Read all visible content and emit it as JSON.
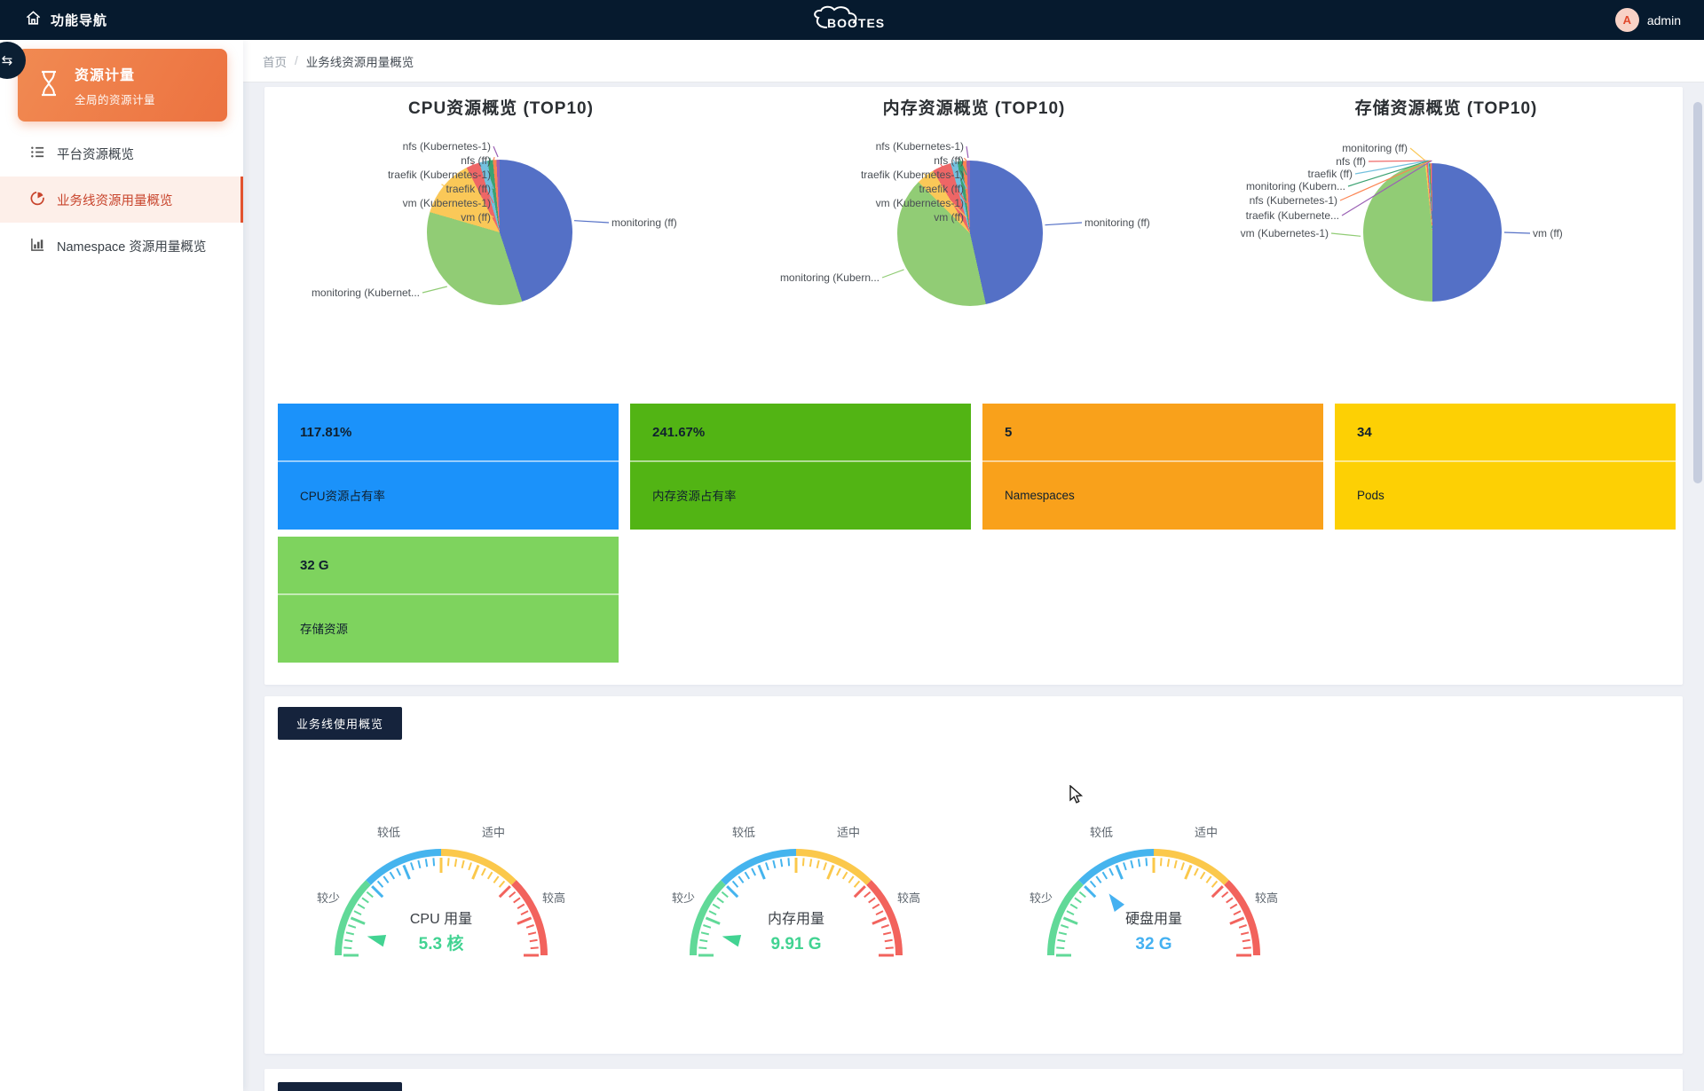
{
  "navbar": {
    "title": "功能导航",
    "logo_text": "BOOTES",
    "user_name": "admin",
    "avatar_letter": "A"
  },
  "sidebar": {
    "header_title": "资源计量",
    "header_subtitle": "全局的资源计量",
    "items": [
      {
        "label": "平台资源概览",
        "icon": "list-icon",
        "active": false
      },
      {
        "label": "业务线资源用量概览",
        "icon": "pie-chart-icon",
        "active": true
      },
      {
        "label": "Namespace 资源用量概览",
        "icon": "bar-chart-icon",
        "active": false
      }
    ]
  },
  "breadcrumb": {
    "home": "首页",
    "separator": "/",
    "current": "业务线资源用量概览"
  },
  "section": {
    "badge": "业务线使用概览"
  },
  "stat_cards": [
    {
      "value": "117.81%",
      "label": "CPU资源占有率",
      "color": "#1b92fa"
    },
    {
      "value": "241.67%",
      "label": "内存资源占有率",
      "color": "#52b414"
    },
    {
      "value": "5",
      "label": "Namespaces",
      "color": "#f9a11b"
    },
    {
      "value": "34",
      "label": "Pods",
      "color": "#fdd004"
    },
    {
      "value": "32 G",
      "label": "存储资源",
      "color": "#7ed35e"
    }
  ],
  "palette": {
    "navbar_bg": "#061a2e",
    "sidebar_accent_orange": "#ee7a45",
    "active_item_red": "#c8442c",
    "badge_bg": "#15233c"
  },
  "chart_data": [
    {
      "type": "pie",
      "title": "CPU资源概览  (TOP10)",
      "unit": "%",
      "slices": [
        {
          "label": "monitoring (ff)",
          "value": 45,
          "color": "#5470c6"
        },
        {
          "label": "monitoring (Kubernet...",
          "value": 34.5,
          "color": "#91cc75"
        },
        {
          "label": "vm (ff)",
          "value": 13,
          "color": "#fac858"
        },
        {
          "label": "vm (Kubernetes-1)",
          "value": 3,
          "color": "#ee6666"
        },
        {
          "label": "traefik (ff)",
          "value": 1.8,
          "color": "#73c0de"
        },
        {
          "label": "traefik (Kubernetes-1)",
          "value": 1.2,
          "color": "#3ba272"
        },
        {
          "label": "nfs (ff)",
          "value": 0.8,
          "color": "#fc8452"
        },
        {
          "label": "nfs (Kubernetes-1)",
          "value": 0.7,
          "color": "#9a60b4"
        }
      ]
    },
    {
      "type": "pie",
      "title": "内存资源概览 (TOP10)",
      "unit": "%",
      "slices": [
        {
          "label": "monitoring (ff)",
          "value": 46.5,
          "color": "#5470c6"
        },
        {
          "label": "monitoring (Kubern...",
          "value": 41,
          "color": "#91cc75"
        },
        {
          "label": "vm (ff)",
          "value": 4,
          "color": "#fac858"
        },
        {
          "label": "vm (Kubernetes-1)",
          "value": 4.2,
          "color": "#ee6666"
        },
        {
          "label": "traefik (ff)",
          "value": 1.5,
          "color": "#73c0de"
        },
        {
          "label": "traefik (Kubernetes-1)",
          "value": 1.1,
          "color": "#3ba272"
        },
        {
          "label": "nfs (ff)",
          "value": 0.9,
          "color": "#fc8452"
        },
        {
          "label": "nfs (Kubernetes-1)",
          "value": 0.8,
          "color": "#9a60b4"
        }
      ]
    },
    {
      "type": "pie",
      "title": "存储资源概览 (TOP10)",
      "unit": "%",
      "slices": [
        {
          "label": "vm (ff)",
          "value": 50,
          "color": "#5470c6"
        },
        {
          "label": "vm (Kubernetes-1)",
          "value": 48.3,
          "color": "#91cc75"
        },
        {
          "label": "monitoring (ff)",
          "value": 0.35,
          "color": "#fac858"
        },
        {
          "label": "nfs (ff)",
          "value": 0.3,
          "color": "#ee6666"
        },
        {
          "label": "traefik (ff)",
          "value": 0.25,
          "color": "#73c0de"
        },
        {
          "label": "monitoring (Kubern...",
          "value": 0.3,
          "color": "#3ba272"
        },
        {
          "label": "nfs (Kubernetes-1)",
          "value": 0.25,
          "color": "#fc8452"
        },
        {
          "label": "traefik (Kubernete...",
          "value": 0.25,
          "color": "#9a60b4"
        }
      ]
    },
    {
      "type": "gauge",
      "title": "CPU 用量",
      "value": 5.3,
      "unit": "核",
      "value_label": "5.3 核",
      "value_color": "#42d392",
      "pointer_frac": 0.08,
      "zone_labels": [
        "较少",
        "较低",
        "适中",
        "较高"
      ],
      "zone_colors": [
        "#61d998",
        "#45b4ee",
        "#fbc84b",
        "#f2635d"
      ]
    },
    {
      "type": "gauge",
      "title": "内存用量",
      "value": 9.91,
      "unit": "G",
      "value_label": "9.91 G",
      "value_color": "#42d392",
      "pointer_frac": 0.08,
      "zone_labels": [
        "较少",
        "较低",
        "适中",
        "较高"
      ],
      "zone_colors": [
        "#61d998",
        "#45b4ee",
        "#fbc84b",
        "#f2635d"
      ]
    },
    {
      "type": "gauge",
      "title": "硬盘用量",
      "value": 32,
      "unit": "G",
      "value_label": "32 G",
      "value_color": "#45b1f1",
      "pointer_frac": 0.3,
      "zone_labels": [
        "较少",
        "较低",
        "适中",
        "较高"
      ],
      "zone_colors": [
        "#61d998",
        "#45b4ee",
        "#fbc84b",
        "#f2635d"
      ]
    }
  ]
}
